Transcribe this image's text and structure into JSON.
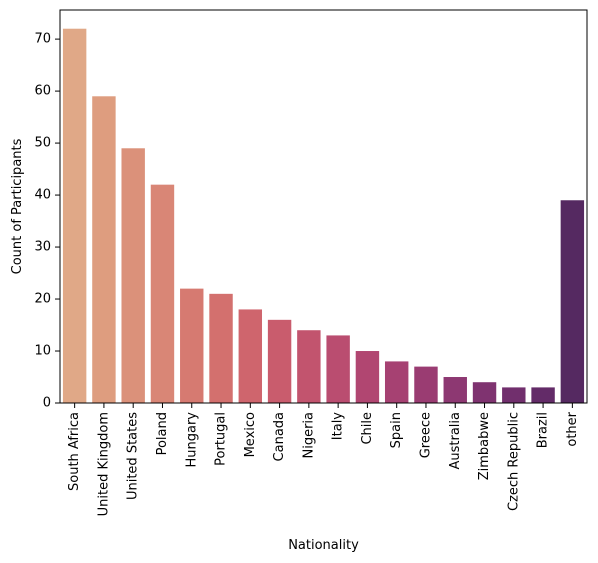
{
  "chart_data": {
    "type": "bar",
    "title": "",
    "xlabel": "Nationality",
    "ylabel": "Count of Participants",
    "ylim": [
      0,
      75.6
    ],
    "yticks": [
      0,
      10,
      20,
      30,
      40,
      50,
      60,
      70
    ],
    "grid": false,
    "palette": "flare",
    "categories": [
      "South Africa",
      "United Kingdom",
      "United States",
      "Poland",
      "Hungary",
      "Portugal",
      "Mexico",
      "Canada",
      "Nigeria",
      "Italy",
      "Chile",
      "Spain",
      "Greece",
      "Australia",
      "Zimbabwe",
      "Czech Republic",
      "Brazil",
      "other"
    ],
    "values": [
      72,
      59,
      49,
      42,
      22,
      21,
      18,
      16,
      14,
      13,
      10,
      8,
      7,
      5,
      4,
      3,
      3,
      39
    ],
    "colors": [
      "#e0a887",
      "#de9d7f",
      "#db917a",
      "#d98676",
      "#d67a71",
      "#d3706e",
      "#cf656d",
      "#c95c6d",
      "#c2546e",
      "#ba4d70",
      "#b14671",
      "#a64172",
      "#9a3c72",
      "#8d3872",
      "#7f3370",
      "#712f6d",
      "#632b68",
      "#552961"
    ]
  }
}
